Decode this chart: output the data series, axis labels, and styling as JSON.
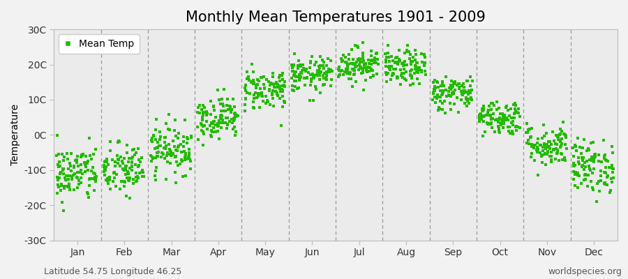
{
  "title": "Monthly Mean Temperatures 1901 - 2009",
  "ylabel": "Temperature",
  "dot_color": "#22bb00",
  "background_color": "#f2f2f2",
  "plot_bg_color": "#ebebeb",
  "ylim": [
    -30,
    30
  ],
  "yticks": [
    -30,
    -20,
    -10,
    0,
    10,
    20,
    30
  ],
  "ytick_labels": [
    "-30C",
    "-20C",
    "-10C",
    "0C",
    "10C",
    "20C",
    "30C"
  ],
  "months": [
    "Jan",
    "Feb",
    "Mar",
    "Apr",
    "May",
    "Jun",
    "Jul",
    "Aug",
    "Sep",
    "Oct",
    "Nov",
    "Dec"
  ],
  "monthly_means": [
    -11,
    -10,
    -4,
    5,
    13,
    17,
    20,
    19,
    12,
    5,
    -3,
    -9
  ],
  "monthly_stds": [
    4.0,
    3.8,
    3.5,
    3.0,
    3.0,
    2.5,
    2.5,
    2.5,
    2.5,
    2.5,
    3.0,
    3.8
  ],
  "n_years": 109,
  "legend_label": "Mean Temp",
  "footer_left": "Latitude 54.75 Longitude 46.25",
  "footer_right": "worldspecies.org",
  "title_fontsize": 15,
  "axis_fontsize": 10,
  "tick_fontsize": 10,
  "footer_fontsize": 9,
  "marker_size": 3.5
}
